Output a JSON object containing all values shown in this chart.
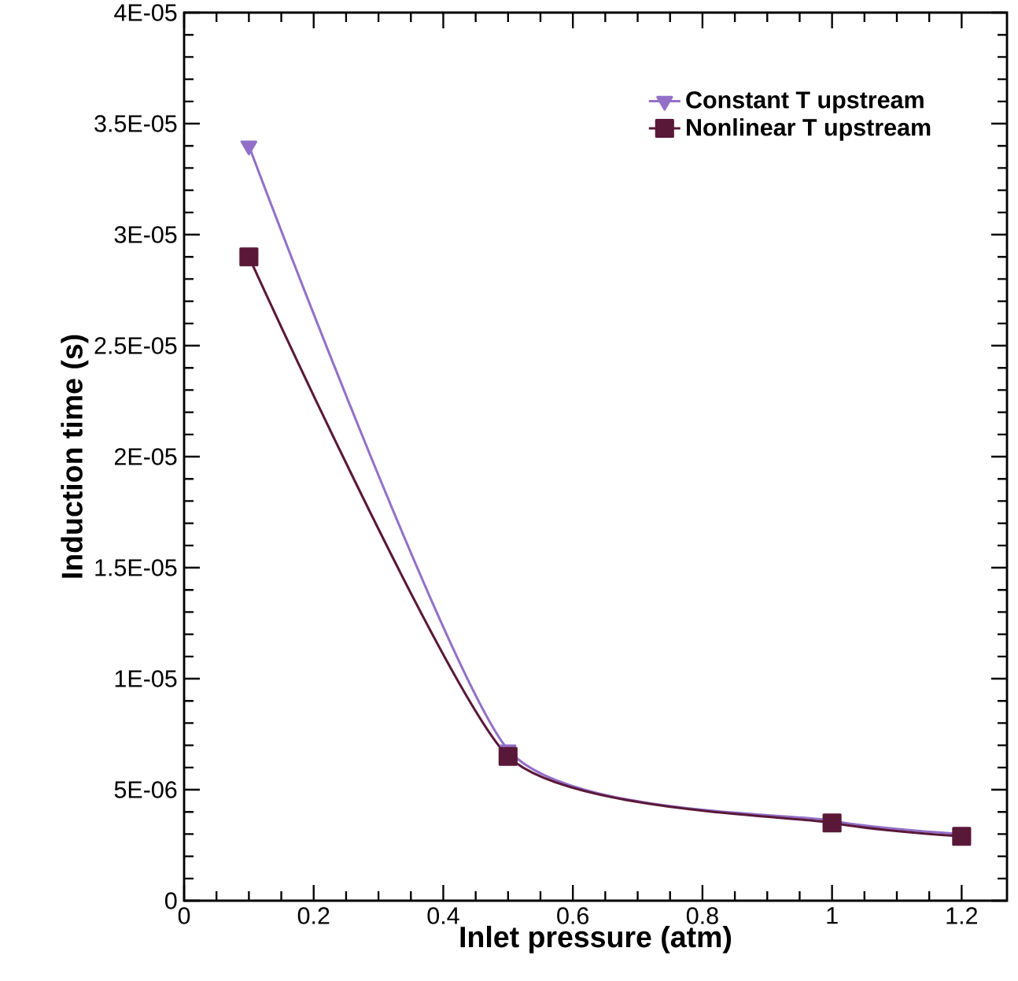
{
  "chart_data": {
    "type": "line",
    "xlabel": "Inlet pressure (atm)",
    "ylabel": "Induction time (s)",
    "x": [
      0.1,
      0.5,
      1.0,
      1.2
    ],
    "series": [
      {
        "name": "Constant T upstream",
        "color": "#9370c8",
        "marker": "triangle",
        "values": [
          3.4e-05,
          6.8e-06,
          3.6e-06,
          3e-06
        ]
      },
      {
        "name": "Nonlinear T upstream",
        "color": "#5a1838",
        "marker": "square",
        "values": [
          2.9e-05,
          6.5e-06,
          3.5e-06,
          2.9e-06
        ]
      }
    ],
    "xlim": [
      0,
      1.27
    ],
    "xticks": [
      0,
      0.2,
      0.4,
      0.6,
      0.8,
      1,
      1.2
    ],
    "ylim": [
      0,
      4e-05
    ],
    "yticks": [
      {
        "value": 0,
        "label": "0"
      },
      {
        "value": 5e-06,
        "label": "5E-06"
      },
      {
        "value": 1e-05,
        "label": "1E-05"
      },
      {
        "value": 1.5e-05,
        "label": "1.5E-05"
      },
      {
        "value": 2e-05,
        "label": "2E-05"
      },
      {
        "value": 2.5e-05,
        "label": "2.5E-05"
      },
      {
        "value": 3e-05,
        "label": "3E-05"
      },
      {
        "value": 3.5e-05,
        "label": "3.5E-05"
      },
      {
        "value": 4e-05,
        "label": "4E-05"
      }
    ],
    "grid": false,
    "legend": "top right",
    "line_style": "solid"
  }
}
